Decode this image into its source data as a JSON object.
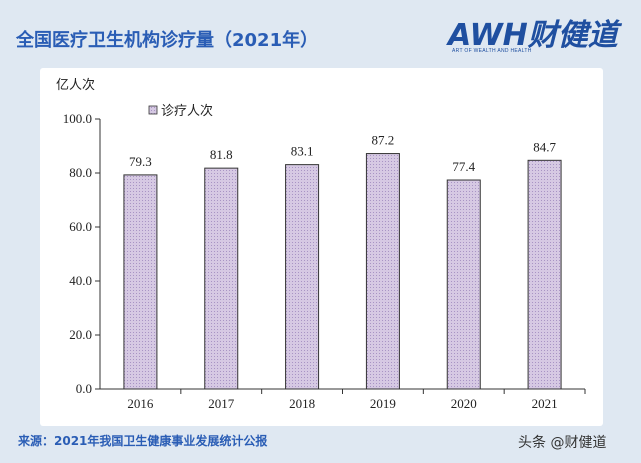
{
  "header": {
    "title": "全国医疗卫生机构诊疗量（2021年）"
  },
  "logo": {
    "main": "AWH财健道",
    "sub": "ART OF WEALTH AND HEALTH"
  },
  "footer": {
    "source": "来源：2021年我国卫生健康事业发展统计公报",
    "watermark": "头条 @财健道"
  },
  "colors": {
    "bar_fill": "#d6c9e3",
    "bar_pattern": "#a894c4",
    "bar_stroke": "#333333",
    "title": "#2a5db5"
  },
  "chart_data": {
    "type": "bar",
    "categories": [
      "2016",
      "2017",
      "2018",
      "2019",
      "2020",
      "2021"
    ],
    "series": [
      {
        "name": "诊疗人次",
        "values": [
          79.3,
          81.8,
          83.1,
          87.2,
          77.4,
          84.7
        ]
      }
    ],
    "value_labels": [
      "79.3",
      "81.8",
      "83.1",
      "87.2",
      "77.4",
      "84.7"
    ],
    "unit": "亿人次",
    "ylim": [
      0,
      100
    ],
    "yticks": [
      "0.0",
      "20.0",
      "40.0",
      "60.0",
      "80.0",
      "100.0"
    ],
    "ytick_values": [
      0,
      20,
      40,
      60,
      80,
      100
    ],
    "legend": "top-left",
    "grid": false
  }
}
